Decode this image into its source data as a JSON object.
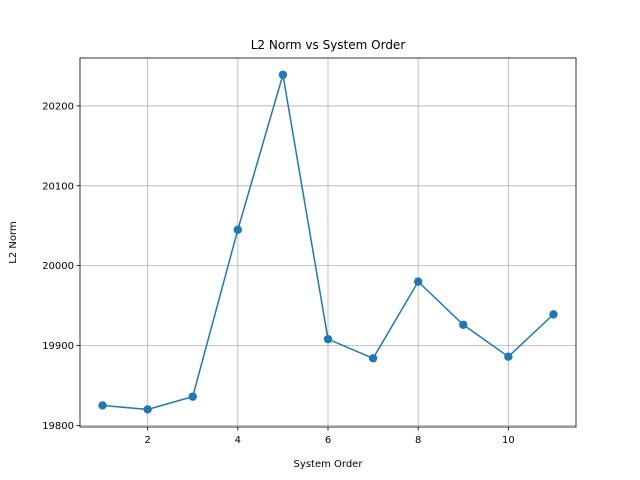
{
  "chart_data": {
    "type": "line",
    "title": "L2 Norm vs System Order",
    "xlabel": "System Order",
    "ylabel": "L2 Norm",
    "xlim": [
      0.5,
      11.5
    ],
    "ylim": [
      19798,
      20260
    ],
    "x_ticks": [
      2,
      4,
      6,
      8,
      10
    ],
    "y_ticks": [
      19800,
      19900,
      20000,
      20100,
      20200
    ],
    "grid": true,
    "series": [
      {
        "color": "#1f77b4",
        "marker": "circle",
        "x": [
          1,
          2,
          3,
          4,
          5,
          6,
          7,
          8,
          9,
          10,
          11
        ],
        "y": [
          19825,
          19820,
          19836,
          20045,
          20239,
          19908,
          19884,
          19980,
          19926,
          19886,
          19939
        ]
      }
    ]
  }
}
